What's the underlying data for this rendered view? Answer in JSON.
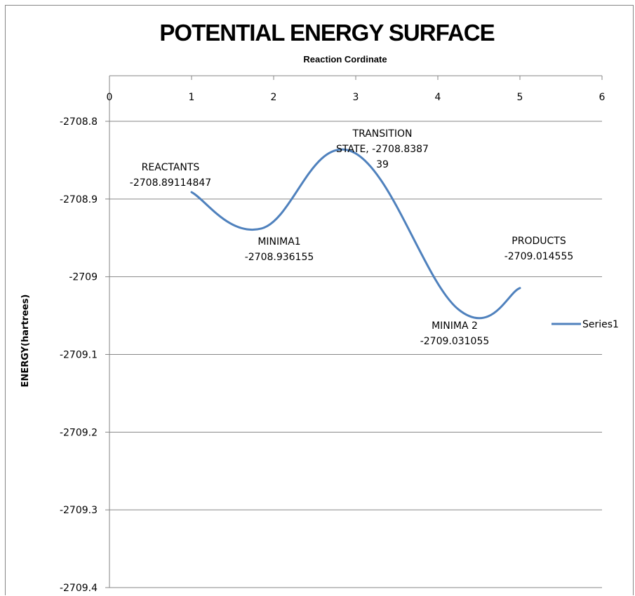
{
  "chart_data": {
    "type": "line",
    "title": "POTENTIAL ENERGY SURFACE",
    "subtitle": "Reaction Cordinate",
    "ylabel": "ENERGY(hartrees)",
    "x_axis_position": "top",
    "xlim": [
      0,
      6
    ],
    "ylim": [
      -2709.4,
      -2708.8
    ],
    "x_ticks": [
      "0",
      "1",
      "2",
      "3",
      "4",
      "5",
      "6"
    ],
    "y_ticks": [
      "-2708.8",
      "-2708.9",
      "-2709",
      "-2709.1",
      "-2709.2",
      "-2709.3",
      "-2709.4"
    ],
    "x_tick_values": [
      0,
      1,
      2,
      3,
      4,
      5,
      6
    ],
    "y_tick_values": [
      -2708.8,
      -2708.9,
      -2709.0,
      -2709.1,
      -2709.2,
      -2709.3,
      -2709.4
    ],
    "gridlines": "horizontal",
    "legend_position": "right",
    "series": [
      {
        "name": "Series1",
        "color": "#4f81bd",
        "x": [
          1,
          2,
          3,
          4,
          5
        ],
        "y": [
          -2708.89114847,
          -2708.936155,
          -2708.838739,
          -2709.031055,
          -2709.014555
        ],
        "render_x": [
          1,
          1.85,
          2.95,
          4.25,
          5
        ],
        "render_y": [
          -2708.89114847,
          -2708.938,
          -2708.838739,
          -2709.042,
          -2709.014555
        ]
      }
    ],
    "annotations": [
      {
        "lines": [
          "REACTANTS",
          "-2708.89114847"
        ]
      },
      {
        "lines": [
          "MINIMA1",
          "-2708.936155"
        ]
      },
      {
        "lines": [
          "TRANSITION",
          "STATE, -2708.8387",
          "39"
        ]
      },
      {
        "lines": [
          "MINIMA 2",
          "-2709.031055"
        ]
      },
      {
        "lines": [
          "PRODUCTS",
          "-2709.014555"
        ]
      }
    ]
  }
}
